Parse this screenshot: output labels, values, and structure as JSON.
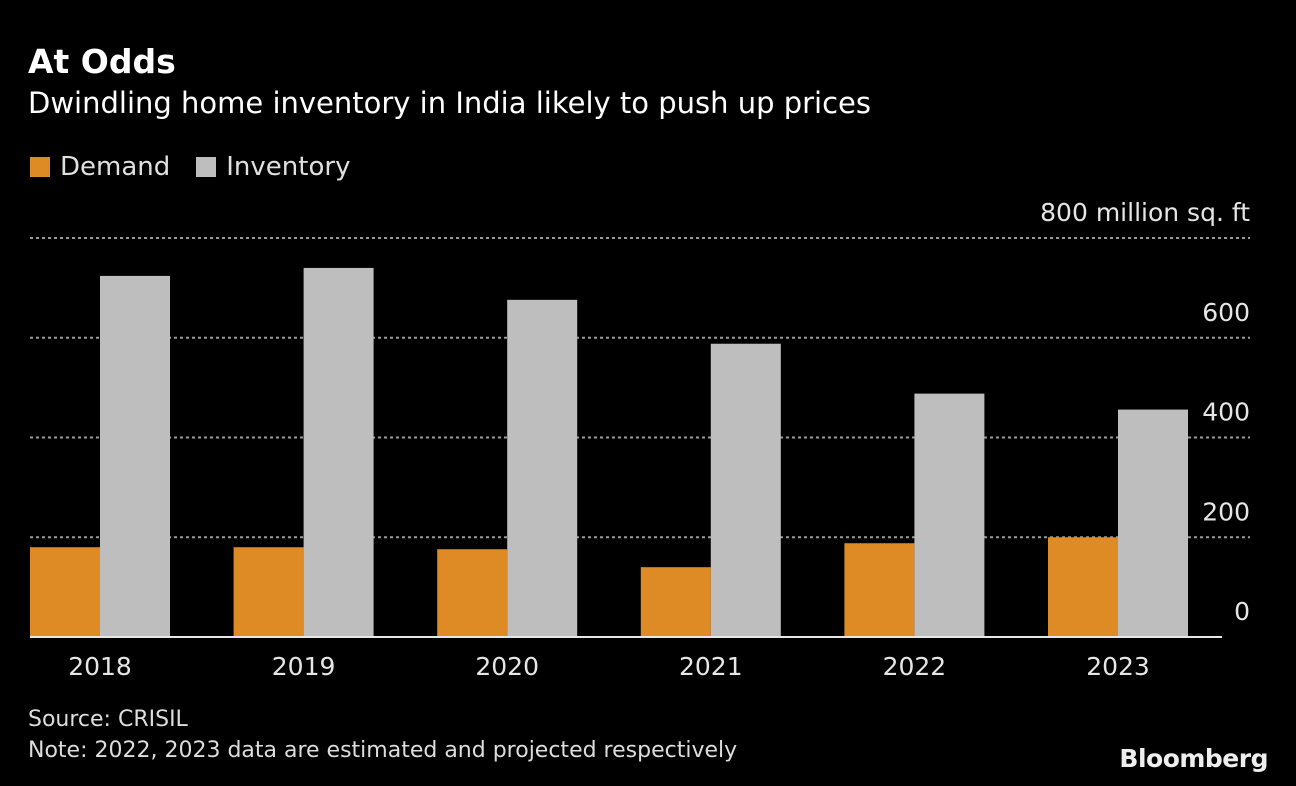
{
  "title": "At Odds",
  "subtitle": "Dwindling home inventory in India likely to push up prices",
  "source": "Source: CRISIL",
  "note": "Note: 2022, 2023 data are estimated and projected respectively",
  "logo": "Bloomberg",
  "chart_data": {
    "type": "bar",
    "categories": [
      "2018",
      "2019",
      "2020",
      "2021",
      "2022",
      "2023"
    ],
    "series": [
      {
        "name": "Demand",
        "color": "#de8b26",
        "values": [
          180,
          180,
          176,
          140,
          188,
          200
        ]
      },
      {
        "name": "Inventory",
        "color": "#bebebe",
        "values": [
          724,
          740,
          676,
          588,
          488,
          456
        ]
      }
    ],
    "ylim": [
      0,
      800
    ],
    "yticks": [
      "0",
      "200",
      "400",
      "600",
      "800"
    ],
    "yunit": "million sq. ft",
    "grid": true,
    "legend_position": "top-left"
  }
}
